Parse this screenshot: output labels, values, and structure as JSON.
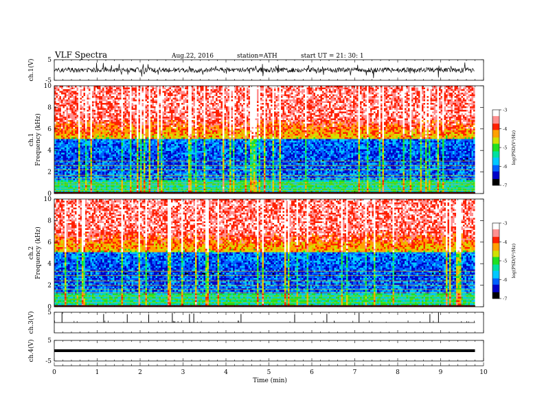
{
  "header": {
    "title": "VLF  Spectra",
    "date": "Aug.22, 2016",
    "station": "station=ATH",
    "start": "start  UT  =    21: 30: 1"
  },
  "chart_data": [
    {
      "type": "line",
      "panel": "ch1-waveform",
      "ylabel": "ch.1(V)",
      "ylim": [
        -5,
        5
      ],
      "yticks": [
        5,
        -5
      ],
      "xlim": [
        0,
        10
      ],
      "baseline": 0,
      "data_end_min": 9.8,
      "color": "#000000"
    },
    {
      "type": "heatmap",
      "panel": "ch1-spectrogram",
      "ylabel_channel": "ch.1",
      "ylabel": "Frequency  (kHz)",
      "ylim": [
        0,
        10
      ],
      "yticks": [
        0,
        2,
        4,
        6,
        8,
        10
      ],
      "xlim": [
        0,
        10
      ],
      "data_end_min": 9.8,
      "zlabel": "log(PSD(V²/Hz)",
      "zlim": [
        -7,
        -3
      ],
      "zticks": [
        -3,
        -4,
        -5,
        -6,
        -7
      ],
      "colormap": [
        "#000000",
        "#0000c8",
        "#0060ff",
        "#00c8ff",
        "#00e0a0",
        "#20e020",
        "#d0e000",
        "#ffa000",
        "#ff2000",
        "#ff9090",
        "#ffffff"
      ],
      "bands_khz": [
        0.3,
        0.5,
        0.8,
        1.0,
        1.4,
        1.7,
        2.2,
        2.6,
        3.0
      ]
    },
    {
      "type": "heatmap",
      "panel": "ch2-spectrogram",
      "ylabel_channel": "ch.2",
      "ylabel": "Frequency  (kHz)",
      "ylim": [
        0,
        10
      ],
      "yticks": [
        0,
        2,
        4,
        6,
        8,
        10
      ],
      "xlim": [
        0,
        10
      ],
      "data_end_min": 9.8,
      "zlabel": "log(PSD(V²/Hz)",
      "zlim": [
        -7,
        -3
      ],
      "zticks": [
        -3,
        -4,
        -5,
        -6,
        -7
      ],
      "colormap": [
        "#000000",
        "#0000c8",
        "#0060ff",
        "#00c8ff",
        "#00e0a0",
        "#20e020",
        "#d0e000",
        "#ffa000",
        "#ff2000",
        "#ff9090",
        "#ffffff"
      ],
      "bands_khz": [
        0.4,
        0.7,
        1.0,
        1.3,
        1.6,
        2.0,
        2.4,
        2.9,
        3.3
      ]
    },
    {
      "type": "line",
      "panel": "ch3-waveform",
      "ylabel": "ch.3(V)",
      "ylim": [
        -5,
        5
      ],
      "yticks": [
        5
      ],
      "xlim": [
        0,
        10
      ],
      "baseline": 0,
      "data_end_min": 9.8,
      "spikes_min": [
        0.18,
        1.15,
        1.7,
        2.2,
        2.75,
        3.15,
        3.25,
        4.35,
        5.6,
        6.35,
        7.1,
        8.75,
        8.95
      ]
    },
    {
      "type": "line",
      "panel": "ch4-waveform",
      "ylabel": "ch.4(V)",
      "ylim": [
        -5,
        5
      ],
      "yticks": [
        5,
        -5
      ],
      "xlim": [
        0,
        10
      ],
      "baseline": 0,
      "data_end_min": 9.8
    }
  ],
  "xaxis": {
    "label": "Time  (min)",
    "ticks": [
      0,
      1,
      2,
      3,
      4,
      5,
      6,
      7,
      8,
      9,
      10
    ]
  }
}
